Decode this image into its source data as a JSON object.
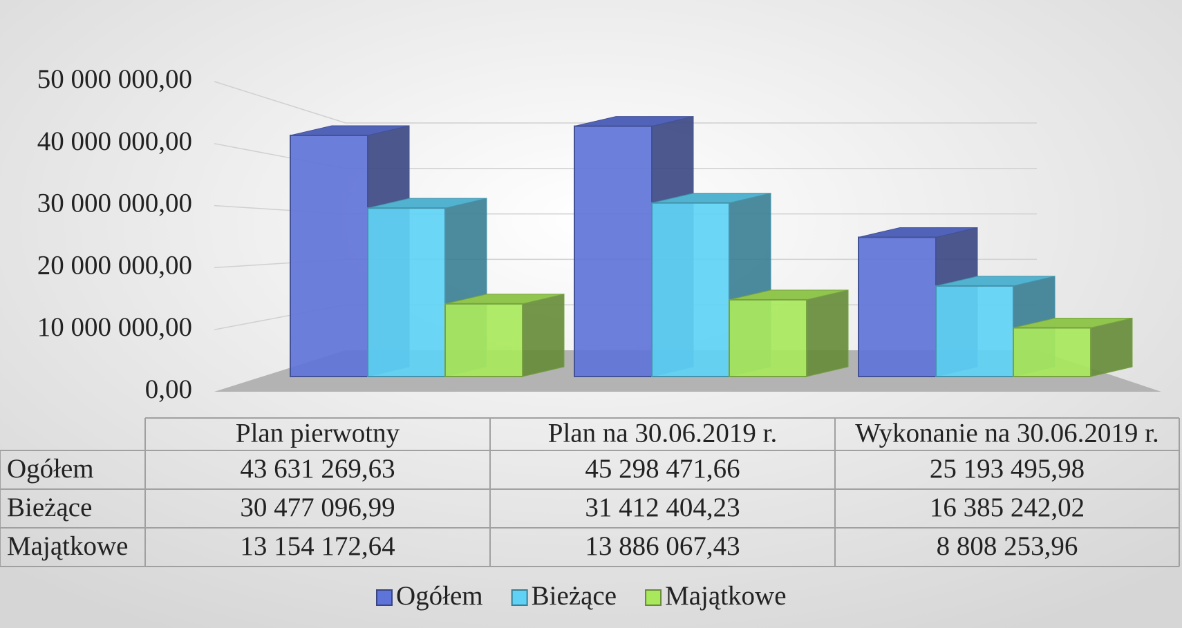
{
  "chart_data": {
    "type": "bar3d",
    "categories": [
      "Plan pierwotny",
      "Plan na 30.06.2019 r.",
      "Wykonanie na 30.06.2019 r."
    ],
    "series": [
      {
        "name": "Ogółem",
        "color": "#5f74d8",
        "values": [
          43631269.63,
          45298471.66,
          25193495.98
        ],
        "value_labels": [
          "43 631 269,63",
          "45 298 471,66",
          "25 193 495,98"
        ]
      },
      {
        "name": "Bieżące",
        "color": "#5fd2f5",
        "values": [
          30477096.99,
          31412404.23,
          16385242.02
        ],
        "value_labels": [
          "30 477 096,99",
          "31 412 404,23",
          "16 385 242,02"
        ]
      },
      {
        "name": "Majątkowe",
        "color": "#a9e85c",
        "values": [
          13154172.64,
          13886067.43,
          8808253.96
        ],
        "value_labels": [
          "13 154 172,64",
          "13 886 067,43",
          "8 808 253,96"
        ]
      }
    ],
    "ylim": [
      0,
      50000000
    ],
    "yticks": [
      {
        "value": 0,
        "label": "0,00"
      },
      {
        "value": 10000000,
        "label": "10 000 000,00"
      },
      {
        "value": 20000000,
        "label": "20 000 000,00"
      },
      {
        "value": 30000000,
        "label": "30 000 000,00"
      },
      {
        "value": 40000000,
        "label": "40 000 000,00"
      },
      {
        "value": 50000000,
        "label": "50 000 000,00"
      }
    ],
    "grid": true,
    "legend": "bottom"
  }
}
